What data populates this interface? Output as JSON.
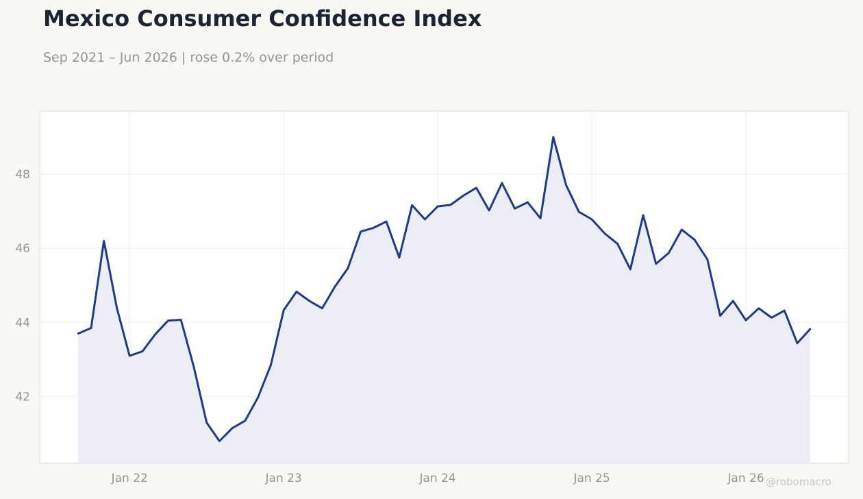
{
  "title": "Mexico Consumer Confidence Index",
  "subtitle": "Sep 2021 – Jun 2026 | rose 0.2% over period",
  "watermark": "@robomacro",
  "colors": {
    "background": "#f9f8f5",
    "line": "#1f3a8a",
    "fill": "#edeef5",
    "grid": "#eeeeee",
    "plot_border": "#dddbd6",
    "tick_text": "#979590"
  },
  "chart_data": {
    "type": "area",
    "x_start": "2021-09",
    "frequency": "monthly",
    "x_ticks": [
      "Jan 22",
      "Jan 23",
      "Jan 24",
      "Jan 25",
      "Jan 26"
    ],
    "y_ticks": [
      42,
      44,
      46,
      48
    ],
    "ylim": [
      40.2,
      49.7
    ],
    "xlim": [
      "2021-06",
      "2026-09"
    ],
    "grid": true,
    "values": [
      43.7,
      43.85,
      46.2,
      44.4,
      43.1,
      43.22,
      43.68,
      44.05,
      44.07,
      42.8,
      41.3,
      40.8,
      41.15,
      41.35,
      41.98,
      42.85,
      44.33,
      44.83,
      44.58,
      44.38,
      44.97,
      45.46,
      46.45,
      46.55,
      46.72,
      45.75,
      47.16,
      46.78,
      47.13,
      47.17,
      47.42,
      47.63,
      47.02,
      47.76,
      47.07,
      47.24,
      46.81,
      49.0,
      47.7,
      46.98,
      46.78,
      46.4,
      46.12,
      45.43,
      46.89,
      45.58,
      45.88,
      46.5,
      46.23,
      45.7,
      44.18,
      44.58,
      44.06,
      44.38,
      44.13,
      44.32,
      43.44,
      43.82
    ]
  }
}
